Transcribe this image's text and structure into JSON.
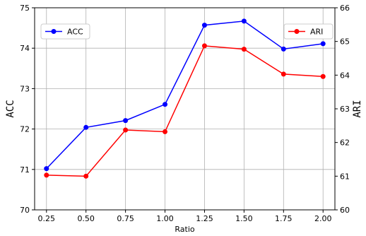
{
  "chart_data": {
    "type": "line",
    "x": [
      0.25,
      0.5,
      0.75,
      1.0,
      1.25,
      1.5,
      1.75,
      2.0
    ],
    "x_tick_labels": [
      "0.25",
      "0.50",
      "0.75",
      "1.00",
      "1.25",
      "1.50",
      "1.75",
      "2.00"
    ],
    "xlabel": "Ratio",
    "xlim": [
      0.175,
      2.075
    ],
    "y_left": {
      "label": "ACC",
      "lim": [
        70,
        75
      ],
      "ticks": [
        70,
        71,
        72,
        73,
        74,
        75
      ]
    },
    "y_right": {
      "label": "ARI",
      "lim": [
        60,
        66
      ],
      "ticks": [
        60,
        61,
        62,
        63,
        64,
        65,
        66
      ]
    },
    "series": [
      {
        "name": "ACC",
        "axis": "left",
        "color": "#0000ff",
        "values": [
          71.02,
          72.04,
          72.21,
          72.61,
          74.57,
          74.67,
          73.98,
          74.11
        ]
      },
      {
        "name": "ARI",
        "axis": "right",
        "color": "#ff0000",
        "values": [
          61.03,
          61.0,
          62.37,
          62.32,
          64.87,
          64.77,
          64.03,
          63.96
        ]
      }
    ],
    "grid": true,
    "legends": [
      "top-left",
      "top-right"
    ]
  }
}
